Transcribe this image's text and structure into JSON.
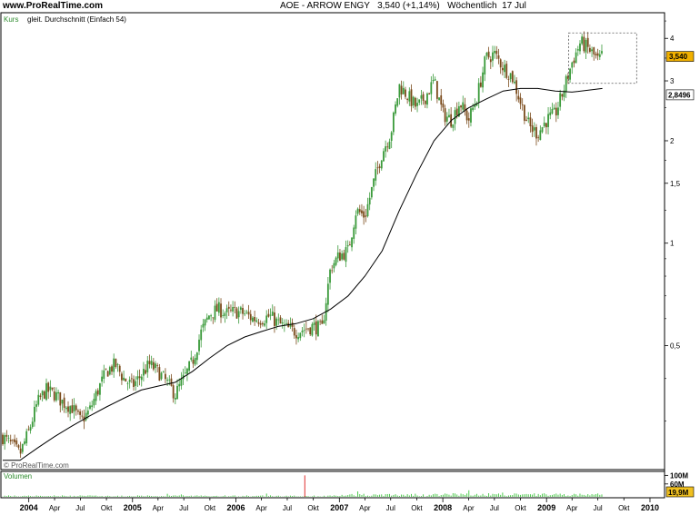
{
  "header": {
    "brand": "www.ProRealTime.com",
    "ticker": "AOE - ARROW ENGY",
    "quote": "3,540 (+1,14%)",
    "period": "Wöchentlich",
    "date": "17 Jul"
  },
  "labels": {
    "kurs": "Kurs",
    "ma_legend": "gleit. Durchschnitt (Einfach 54)",
    "copyright": "© ProRealTime.com",
    "volumen": "Volumen"
  },
  "badges": {
    "last_price": "3,540",
    "ma_value": "2,8496",
    "volume_value": "19,9M"
  },
  "colors": {
    "up": "#3a9a3a",
    "down": "#7a4a1a",
    "ma": "#000000",
    "volume": "#3cc43c",
    "volume_spike": "#e03030",
    "price_badge": "#f0b000",
    "volume_badge": "#f0c020"
  },
  "chart_data": [
    {
      "type": "candlestick",
      "scale": "log",
      "ylim": [
        0.22,
        4.7
      ],
      "y_ticks": [
        {
          "v": 4,
          "label": "4"
        },
        {
          "v": 3,
          "label": "3"
        },
        {
          "v": 2,
          "label": "2"
        },
        {
          "v": 1.5,
          "label": "1,5"
        },
        {
          "v": 1,
          "label": "1"
        },
        {
          "v": 0.5,
          "label": "0,5"
        }
      ],
      "x_range": [
        "2003-10-01",
        "2010-02-15"
      ],
      "x_ticks": [
        {
          "d": "2004-01-01",
          "label": "2004",
          "major": true
        },
        {
          "d": "2004-04-01",
          "label": "Apr",
          "major": false
        },
        {
          "d": "2004-07-01",
          "label": "Jul",
          "major": false
        },
        {
          "d": "2004-10-01",
          "label": "Okt",
          "major": false
        },
        {
          "d": "2005-01-01",
          "label": "2005",
          "major": true
        },
        {
          "d": "2005-04-01",
          "label": "Apr",
          "major": false
        },
        {
          "d": "2005-07-01",
          "label": "Jul",
          "major": false
        },
        {
          "d": "2005-10-01",
          "label": "Okt",
          "major": false
        },
        {
          "d": "2006-01-01",
          "label": "2006",
          "major": true
        },
        {
          "d": "2006-04-01",
          "label": "Apr",
          "major": false
        },
        {
          "d": "2006-07-01",
          "label": "Jul",
          "major": false
        },
        {
          "d": "2006-10-01",
          "label": "Okt",
          "major": false
        },
        {
          "d": "2007-01-01",
          "label": "2007",
          "major": true
        },
        {
          "d": "2007-04-01",
          "label": "Apr",
          "major": false
        },
        {
          "d": "2007-07-01",
          "label": "Jul",
          "major": false
        },
        {
          "d": "2007-10-01",
          "label": "Okt",
          "major": false
        },
        {
          "d": "2008-01-01",
          "label": "2008",
          "major": true
        },
        {
          "d": "2008-04-01",
          "label": "Apr",
          "major": false
        },
        {
          "d": "2008-07-01",
          "label": "Jul",
          "major": false
        },
        {
          "d": "2008-10-01",
          "label": "Okt",
          "major": false
        },
        {
          "d": "2009-01-01",
          "label": "2009",
          "major": true
        },
        {
          "d": "2009-04-01",
          "label": "Apr",
          "major": false
        },
        {
          "d": "2009-07-01",
          "label": "Jul",
          "major": false
        },
        {
          "d": "2009-10-01",
          "label": "Okt",
          "major": false
        },
        {
          "d": "2010-01-01",
          "label": "2010",
          "major": true
        }
      ],
      "price_path": [
        [
          "2003-10-01",
          0.27
        ],
        [
          "2003-11-01",
          0.255
        ],
        [
          "2003-12-01",
          0.24
        ],
        [
          "2004-01-01",
          0.28
        ],
        [
          "2004-02-01",
          0.34
        ],
        [
          "2004-03-01",
          0.37
        ],
        [
          "2004-04-01",
          0.36
        ],
        [
          "2004-05-01",
          0.34
        ],
        [
          "2004-06-01",
          0.33
        ],
        [
          "2004-07-01",
          0.3
        ],
        [
          "2004-08-01",
          0.32
        ],
        [
          "2004-09-01",
          0.37
        ],
        [
          "2004-10-01",
          0.42
        ],
        [
          "2004-11-01",
          0.44
        ],
        [
          "2004-12-01",
          0.4
        ],
        [
          "2005-01-01",
          0.38
        ],
        [
          "2005-02-01",
          0.41
        ],
        [
          "2005-03-01",
          0.44
        ],
        [
          "2005-04-01",
          0.42
        ],
        [
          "2005-05-01",
          0.39
        ],
        [
          "2005-06-01",
          0.36
        ],
        [
          "2005-07-01",
          0.4
        ],
        [
          "2005-08-01",
          0.45
        ],
        [
          "2005-09-01",
          0.55
        ],
        [
          "2005-10-01",
          0.62
        ],
        [
          "2005-11-01",
          0.64
        ],
        [
          "2005-12-01",
          0.62
        ],
        [
          "2006-01-01",
          0.63
        ],
        [
          "2006-02-01",
          0.62
        ],
        [
          "2006-03-01",
          0.6
        ],
        [
          "2006-04-01",
          0.6
        ],
        [
          "2006-05-01",
          0.61
        ],
        [
          "2006-06-01",
          0.58
        ],
        [
          "2006-07-01",
          0.56
        ],
        [
          "2006-08-01",
          0.55
        ],
        [
          "2006-09-01",
          0.56
        ],
        [
          "2006-10-01",
          0.57
        ],
        [
          "2006-11-01",
          0.56
        ],
        [
          "2006-12-01",
          0.85
        ],
        [
          "2007-01-01",
          0.92
        ],
        [
          "2007-02-01",
          0.95
        ],
        [
          "2007-03-01",
          1.25
        ],
        [
          "2007-04-01",
          1.2
        ],
        [
          "2007-05-01",
          1.5
        ],
        [
          "2007-06-01",
          1.85
        ],
        [
          "2007-07-01",
          2.1
        ],
        [
          "2007-08-01",
          2.9
        ],
        [
          "2007-09-01",
          2.7
        ],
        [
          "2007-10-01",
          2.5
        ],
        [
          "2007-11-01",
          2.7
        ],
        [
          "2007-12-01",
          3.0
        ],
        [
          "2008-01-01",
          2.4
        ],
        [
          "2008-02-01",
          2.3
        ],
        [
          "2008-03-01",
          2.6
        ],
        [
          "2008-04-01",
          2.3
        ],
        [
          "2008-05-01",
          2.7
        ],
        [
          "2008-06-01",
          3.5
        ],
        [
          "2008-07-01",
          3.6
        ],
        [
          "2008-08-01",
          3.3
        ],
        [
          "2008-09-01",
          3.1
        ],
        [
          "2008-10-01",
          2.6
        ],
        [
          "2008-11-01",
          2.2
        ],
        [
          "2008-12-01",
          2.1
        ],
        [
          "2009-01-01",
          2.3
        ],
        [
          "2009-02-01",
          2.4
        ],
        [
          "2009-03-01",
          2.8
        ],
        [
          "2009-04-01",
          3.4
        ],
        [
          "2009-05-01",
          3.9
        ],
        [
          "2009-06-01",
          3.7
        ],
        [
          "2009-07-01",
          3.45
        ],
        [
          "2009-07-17",
          3.54
        ]
      ],
      "moving_average": [
        [
          "2003-10-01",
          0.23
        ],
        [
          "2003-12-01",
          0.23
        ],
        [
          "2004-02-01",
          0.25
        ],
        [
          "2004-04-01",
          0.27
        ],
        [
          "2004-06-01",
          0.29
        ],
        [
          "2004-08-01",
          0.31
        ],
        [
          "2004-10-01",
          0.33
        ],
        [
          "2004-12-01",
          0.35
        ],
        [
          "2005-02-01",
          0.37
        ],
        [
          "2005-04-01",
          0.38
        ],
        [
          "2005-06-01",
          0.39
        ],
        [
          "2005-08-01",
          0.42
        ],
        [
          "2005-10-01",
          0.46
        ],
        [
          "2005-12-01",
          0.5
        ],
        [
          "2006-02-01",
          0.53
        ],
        [
          "2006-04-01",
          0.55
        ],
        [
          "2006-06-01",
          0.57
        ],
        [
          "2006-08-01",
          0.58
        ],
        [
          "2006-10-01",
          0.6
        ],
        [
          "2006-12-01",
          0.64
        ],
        [
          "2007-02-01",
          0.7
        ],
        [
          "2007-04-01",
          0.8
        ],
        [
          "2007-06-01",
          0.95
        ],
        [
          "2007-08-01",
          1.25
        ],
        [
          "2007-10-01",
          1.6
        ],
        [
          "2007-12-01",
          2.0
        ],
        [
          "2008-02-01",
          2.3
        ],
        [
          "2008-04-01",
          2.5
        ],
        [
          "2008-06-01",
          2.65
        ],
        [
          "2008-08-01",
          2.8
        ],
        [
          "2008-10-01",
          2.85
        ],
        [
          "2008-12-01",
          2.85
        ],
        [
          "2009-02-01",
          2.8
        ],
        [
          "2009-04-01",
          2.78
        ],
        [
          "2009-06-01",
          2.82
        ],
        [
          "2009-07-17",
          2.85
        ]
      ],
      "last_price": 3.54,
      "ma_last": 2.8496
    },
    {
      "type": "bar",
      "name": "Volumen",
      "y_ticks": [
        {
          "v": 100,
          "label": "100M"
        },
        {
          "v": 60,
          "label": "60M"
        }
      ],
      "volume_spike": {
        "d": "2006-09-01",
        "v": 100
      },
      "last_volume": 19.9
    }
  ]
}
